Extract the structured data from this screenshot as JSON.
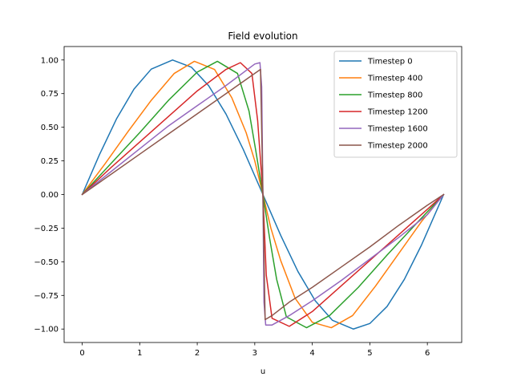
{
  "chart_data": {
    "type": "line",
    "title": "Field evolution",
    "xlabel": "u",
    "ylabel": "",
    "xlim": [
      -0.314,
      6.597
    ],
    "ylim": [
      -1.1,
      1.1
    ],
    "xticks": [
      0,
      1,
      2,
      3,
      4,
      5,
      6
    ],
    "xtick_labels": [
      "0",
      "1",
      "2",
      "3",
      "4",
      "5",
      "6"
    ],
    "yticks": [
      1.0,
      0.75,
      0.5,
      0.25,
      0.0,
      -0.25,
      -0.5,
      -0.75,
      -1.0
    ],
    "ytick_labels": [
      "1.00",
      "0.75",
      "0.50",
      "0.25",
      "0.00",
      "−0.25",
      "−0.50",
      "−0.75",
      "−1.00"
    ],
    "grid": false,
    "legend_position": "top-right",
    "series": [
      {
        "name": "Timestep 0",
        "color": "#1f77b4",
        "x": [
          0,
          0.3,
          0.6,
          0.9,
          1.2,
          1.5708,
          1.9,
          2.2,
          2.5,
          2.8,
          3.1416,
          3.45,
          3.75,
          4.05,
          4.35,
          4.7124,
          5.0,
          5.3,
          5.6,
          5.9,
          6.2832
        ],
        "y": [
          0,
          0.296,
          0.565,
          0.783,
          0.932,
          1.0,
          0.946,
          0.808,
          0.598,
          0.335,
          0,
          -0.303,
          -0.572,
          -0.789,
          -0.935,
          -1.0,
          -0.959,
          -0.832,
          -0.631,
          -0.374,
          0
        ]
      },
      {
        "name": "Timestep 400",
        "color": "#ff7f0e",
        "x": [
          0,
          0.4,
          0.8,
          1.2,
          1.6,
          1.95,
          2.3,
          2.6,
          2.85,
          3.0,
          3.1416,
          3.28,
          3.45,
          3.7,
          4.0,
          4.33,
          4.7,
          5.1,
          5.5,
          5.9,
          6.2832
        ],
        "y": [
          0,
          0.23,
          0.47,
          0.7,
          0.9,
          0.99,
          0.93,
          0.72,
          0.46,
          0.25,
          0,
          -0.25,
          -0.49,
          -0.77,
          -0.95,
          -0.99,
          -0.9,
          -0.68,
          -0.44,
          -0.2,
          0
        ]
      },
      {
        "name": "Timestep 800",
        "color": "#2ca02c",
        "x": [
          0,
          0.5,
          1.0,
          1.5,
          2.0,
          2.35,
          2.7,
          2.9,
          3.02,
          3.1416,
          3.26,
          3.38,
          3.55,
          3.9,
          4.3,
          4.8,
          5.3,
          5.8,
          6.2832
        ],
        "y": [
          0,
          0.23,
          0.46,
          0.7,
          0.91,
          0.99,
          0.9,
          0.62,
          0.32,
          0,
          -0.33,
          -0.63,
          -0.91,
          -0.99,
          -0.9,
          -0.69,
          -0.45,
          -0.22,
          0
        ]
      },
      {
        "name": "Timestep 1200",
        "color": "#d62728",
        "x": [
          0,
          0.5,
          1.0,
          1.5,
          2.0,
          2.5,
          2.75,
          2.95,
          3.05,
          3.1416,
          3.2,
          3.3,
          3.6,
          4.0,
          4.5,
          5.0,
          5.5,
          6.0,
          6.2832
        ],
        "y": [
          0,
          0.2,
          0.39,
          0.58,
          0.77,
          0.93,
          0.98,
          0.9,
          0.55,
          0,
          -0.6,
          -0.92,
          -0.98,
          -0.87,
          -0.68,
          -0.49,
          -0.3,
          -0.11,
          0
        ]
      },
      {
        "name": "Timestep 1600",
        "color": "#9467bd",
        "x": [
          0,
          0.5,
          1.0,
          1.5,
          2.0,
          2.5,
          3.0,
          3.09,
          3.12,
          3.1416,
          3.16,
          3.19,
          3.3,
          3.6,
          4.0,
          4.5,
          5.0,
          5.5,
          6.0,
          6.2832
        ],
        "y": [
          0,
          0.17,
          0.34,
          0.51,
          0.66,
          0.81,
          0.97,
          0.98,
          0.8,
          0,
          -0.8,
          -0.97,
          -0.97,
          -0.9,
          -0.79,
          -0.64,
          -0.48,
          -0.32,
          -0.15,
          0
        ]
      },
      {
        "name": "Timestep 2000",
        "color": "#8c564b",
        "x": [
          0,
          0.5,
          1.0,
          1.5,
          2.0,
          2.5,
          3.0,
          3.1,
          3.1416,
          3.18,
          3.3,
          3.6,
          4.0,
          4.5,
          5.0,
          5.5,
          6.0,
          6.2832
        ],
        "y": [
          0,
          0.15,
          0.3,
          0.45,
          0.6,
          0.75,
          0.9,
          0.93,
          0,
          -0.93,
          -0.9,
          -0.8,
          -0.69,
          -0.54,
          -0.39,
          -0.23,
          -0.08,
          0
        ]
      }
    ]
  }
}
